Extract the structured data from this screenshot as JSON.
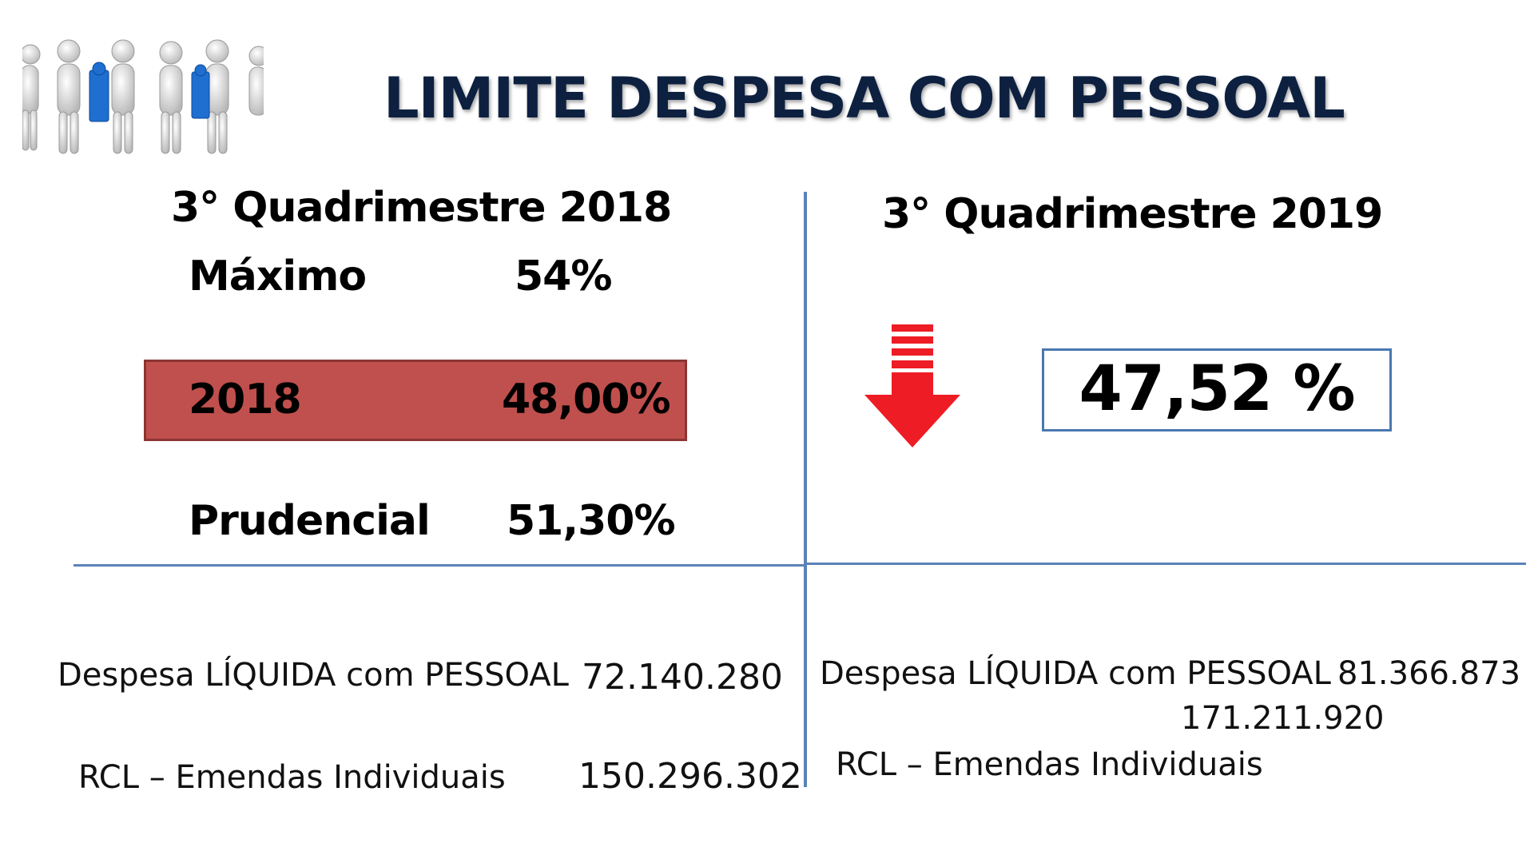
{
  "title": "LIMITE DESPESA COM PESSOAL",
  "left": {
    "heading": "3° Quadrimestre 2018",
    "maximo_label": "Máximo",
    "maximo_value": "54%",
    "box_year": "2018",
    "box_value": "48,00%",
    "prudencial_label": "Prudencial",
    "prudencial_value": "51,30%",
    "despesa_label": "Despesa LÍQUIDA com PESSOAL",
    "despesa_value": "72.140.280",
    "rcl_label": "RCL – Emendas Individuais",
    "rcl_value": "150.296.302"
  },
  "right": {
    "heading": "3° Quadrimestre 2019",
    "result_value": "47,52 %",
    "despesa_label": "Despesa LÍQUIDA com PESSOAL",
    "despesa_value": "81.366.873",
    "rcl_value": "171.211.920",
    "rcl_label": "RCL – Emendas Individuais"
  },
  "icons": {
    "logo": "people-puzzle-icon",
    "arrow": "down-arrow-icon"
  },
  "colors": {
    "title": "#0d2040",
    "divider": "#5a82b8",
    "box_2018_fill": "#c0504d",
    "box_2019_border": "#4a78b0",
    "arrow": "#ee1c24"
  }
}
